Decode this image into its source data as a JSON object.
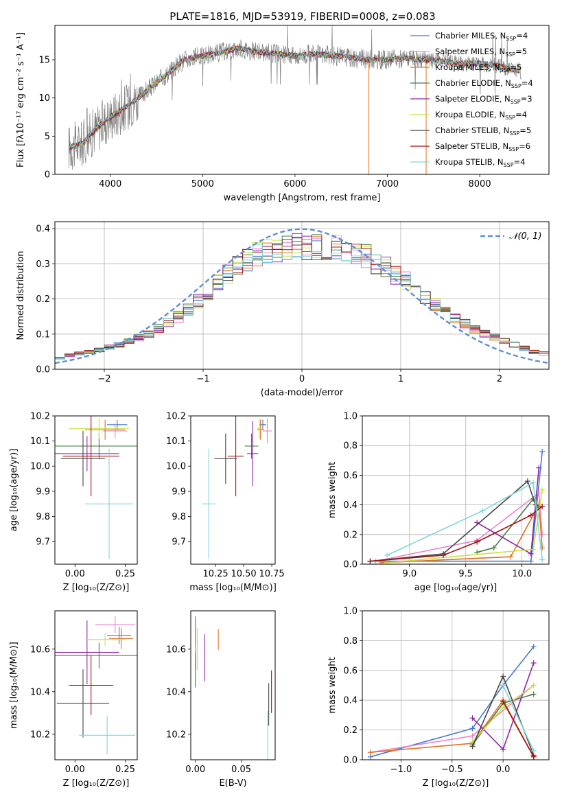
{
  "figure": {
    "title": "PLATE=1816, MJD=53919, FIBERID=0008, z=0.083"
  },
  "colors": {
    "data": "#808080",
    "gauss": "#5b8ddb",
    "series": [
      "#4878d0",
      "#ee82c8",
      "#e07020",
      "#4a7a45",
      "#8e24aa",
      "#c8e040",
      "#444444",
      "#a01010",
      "#7fd6dc"
    ]
  },
  "chart_data": [
    {
      "id": "spectrum",
      "type": "line",
      "xlabel": "wavelength [Angstrom, rest frame]",
      "ylabel": "Flux [fλ10⁻¹⁷ erg cm⁻² s⁻¹ A⁻¹]",
      "xlim": [
        3400,
        8750
      ],
      "ylim": [
        0,
        19.5
      ],
      "xticks": [
        4000,
        5000,
        6000,
        7000,
        8000
      ],
      "yticks": [
        0,
        5,
        10,
        15
      ],
      "legend_position": "right",
      "data_trend": {
        "x": [
          3550,
          3700,
          3850,
          4000,
          4200,
          4400,
          4600,
          4800,
          5000,
          5200,
          5400,
          5600,
          5800,
          6000,
          6200,
          6400,
          6600,
          6800,
          7000,
          7200,
          7400,
          7600,
          7800,
          8000,
          8200,
          8450
        ],
        "y": [
          3.5,
          4.0,
          6.0,
          7.5,
          9.0,
          11.0,
          13.0,
          15.0,
          15.5,
          16.0,
          16.5,
          16.0,
          15.8,
          15.5,
          15.8,
          15.5,
          15.3,
          15.0,
          15.0,
          15.2,
          15.0,
          14.8,
          14.5,
          14.5,
          14.2,
          13.5
        ]
      },
      "series": [
        {
          "name": "Chabrier MILES, N_SSP=4",
          "label_main": "Chabrier MILES, N",
          "label_sub": "SSP",
          "label_end": "=4"
        },
        {
          "name": "Salpeter MILES, N_SSP=5",
          "label_main": "Salpeter MILES, N",
          "label_sub": "SSP",
          "label_end": "=5"
        },
        {
          "name": "Kroupa MILES, N_SSP=5",
          "label_main": "Kroupa MILES, N",
          "label_sub": "SSP",
          "label_end": "=5"
        },
        {
          "name": "Chabrier ELODIE, N_SSP=4",
          "label_main": "Chabrier ELODIE, N",
          "label_sub": "SSP",
          "label_end": "=4"
        },
        {
          "name": "Salpeter ELODIE, N_SSP=3",
          "label_main": "Salpeter ELODIE, N",
          "label_sub": "SSP",
          "label_end": "=3"
        },
        {
          "name": "Kroupa ELODIE, N_SSP=4",
          "label_main": "Kroupa ELODIE, N",
          "label_sub": "SSP",
          "label_end": "=4"
        },
        {
          "name": "Chabrier STELIB, N_SSP=5",
          "label_main": "Chabrier STELIB, N",
          "label_sub": "SSP",
          "label_end": "=5"
        },
        {
          "name": "Salpeter STELIB, N_SSP=6",
          "label_main": "Salpeter STELIB, N",
          "label_sub": "SSP",
          "label_end": "=6"
        },
        {
          "name": "Kroupa STELIB, N_SSP=4",
          "label_main": "Kroupa STELIB, N",
          "label_sub": "SSP",
          "label_end": "=4"
        }
      ]
    },
    {
      "id": "residuals",
      "type": "line",
      "xlabel": "(data-model)/error",
      "ylabel": "Normed distribution",
      "xlim": [
        -2.5,
        2.5
      ],
      "ylim": [
        0,
        0.42
      ],
      "xticks": [
        -2,
        -1,
        0,
        1,
        2
      ],
      "xtick_labels": [
        "−2",
        "−1",
        "0",
        "1",
        "2"
      ],
      "yticks": [
        0.0,
        0.1,
        0.2,
        0.3,
        0.4
      ],
      "ytick_labels": [
        "0.0",
        "0.1",
        "0.2",
        "0.3",
        "0.4"
      ],
      "grid": true,
      "gauss_legend": "𝒩(0, 1)",
      "bins": [
        -2.5,
        -2.4,
        -2.3,
        -2.2,
        -2.1,
        -2.0,
        -1.9,
        -1.8,
        -1.7,
        -1.6,
        -1.5,
        -1.4,
        -1.3,
        -1.2,
        -1.1,
        -1.0,
        -0.9,
        -0.8,
        -0.7,
        -0.6,
        -0.5,
        -0.4,
        -0.3,
        -0.2,
        -0.1,
        0.0,
        0.1,
        0.2,
        0.3,
        0.4,
        0.5,
        0.6,
        0.7,
        0.8,
        0.9,
        1.0,
        1.1,
        1.2,
        1.3,
        1.4,
        1.5,
        1.6,
        1.7,
        1.8,
        1.9,
        2.0,
        2.1,
        2.2,
        2.3,
        2.4,
        2.5
      ],
      "hist_mean": [
        0.032,
        0.04,
        0.045,
        0.05,
        0.055,
        0.062,
        0.07,
        0.08,
        0.09,
        0.1,
        0.115,
        0.13,
        0.15,
        0.17,
        0.195,
        0.22,
        0.245,
        0.27,
        0.29,
        0.31,
        0.325,
        0.335,
        0.34,
        0.345,
        0.35,
        0.35,
        0.35,
        0.35,
        0.345,
        0.34,
        0.33,
        0.32,
        0.305,
        0.29,
        0.27,
        0.25,
        0.23,
        0.205,
        0.185,
        0.165,
        0.145,
        0.13,
        0.115,
        0.1,
        0.09,
        0.08,
        0.07,
        0.06,
        0.05,
        0.045
      ]
    },
    {
      "id": "age-vs-Z",
      "type": "scatter",
      "xlabel": "Z [log₁₀(Z/Z⊙)]",
      "ylabel": "age  [log₁₀(age/yr)]",
      "xlim": [
        -0.1,
        0.31
      ],
      "ylim": [
        9.61,
        10.2
      ],
      "xticks": [
        0.0,
        0.25
      ],
      "xtick_labels": [
        "0.00",
        "0.25"
      ],
      "yticks": [
        9.7,
        9.8,
        9.9,
        10.0,
        10.1,
        10.2
      ],
      "ytick_labels": [
        "9.7",
        "9.8",
        "9.9",
        "10.0",
        "10.1",
        "10.2"
      ],
      "points": [
        {
          "x": 0.21,
          "y": 10.165,
          "xerr": 0.05,
          "yerr": 0.02
        },
        {
          "x": 0.2,
          "y": 10.14,
          "xerr": 0.06,
          "yerr": 0.03
        },
        {
          "x": 0.15,
          "y": 10.145,
          "xerr": 0.1,
          "yerr": 0.04
        },
        {
          "x": 0.12,
          "y": 10.08,
          "xerr": 0.22,
          "yerr": 0.05
        },
        {
          "x": 0.06,
          "y": 10.05,
          "xerr": 0.16,
          "yerr": 0.07
        },
        {
          "x": 0.12,
          "y": 10.15,
          "xerr": 0.15,
          "yerr": 0.04
        },
        {
          "x": 0.04,
          "y": 10.03,
          "xerr": 0.11,
          "yerr": 0.11
        },
        {
          "x": 0.08,
          "y": 10.04,
          "xerr": 0.14,
          "yerr": 0.16
        },
        {
          "x": 0.17,
          "y": 9.85,
          "xerr": 0.12,
          "yerr": 0.22
        }
      ]
    },
    {
      "id": "age-vs-mass",
      "type": "scatter",
      "xlabel": "mass [log₁₀(M/M⊙)]",
      "ylabel": "",
      "xlim": [
        10.03,
        10.78
      ],
      "ylim": [
        9.61,
        10.2
      ],
      "xticks": [
        10.25,
        10.5,
        10.75
      ],
      "xtick_labels": [
        "10.25",
        "10.50",
        "10.75"
      ],
      "yticks": [
        9.7,
        9.8,
        9.9,
        10.0,
        10.1,
        10.2
      ],
      "ytick_labels": [
        "9.7",
        "9.8",
        "9.9",
        "10.0",
        "10.1",
        "10.2"
      ],
      "points": [
        {
          "x": 10.67,
          "y": 10.165,
          "xerr": 0.03,
          "yerr": 0.02
        },
        {
          "x": 10.71,
          "y": 10.14,
          "xerr": 0.04,
          "yerr": 0.05
        },
        {
          "x": 10.65,
          "y": 10.145,
          "xerr": 0.03,
          "yerr": 0.04
        },
        {
          "x": 10.57,
          "y": 10.08,
          "xerr": 0.06,
          "yerr": 0.05
        },
        {
          "x": 10.58,
          "y": 10.05,
          "xerr": 0.05,
          "yerr": 0.13
        },
        {
          "x": 10.64,
          "y": 10.15,
          "xerr": 0.02,
          "yerr": 0.04
        },
        {
          "x": 10.34,
          "y": 10.03,
          "xerr": 0.1,
          "yerr": 0.1
        },
        {
          "x": 10.43,
          "y": 10.04,
          "xerr": 0.07,
          "yerr": 0.16
        },
        {
          "x": 10.19,
          "y": 9.85,
          "xerr": 0.06,
          "yerr": 0.22
        }
      ]
    },
    {
      "id": "mass-weight-vs-age",
      "type": "line",
      "xlabel": "age  [log₁₀(age/yr)]",
      "ylabel": "mass weight",
      "xlim": [
        8.58,
        10.24
      ],
      "ylim": [
        0,
        1
      ],
      "xticks": [
        9.0,
        9.5,
        10.0
      ],
      "xtick_labels": [
        "9.0",
        "9.5",
        "10.0"
      ],
      "yticks": [
        0.0,
        0.2,
        0.4,
        0.6,
        0.8,
        1.0
      ],
      "ytick_labels": [
        "0.0",
        "0.2",
        "0.4",
        "0.6",
        "0.8",
        "1.0"
      ],
      "grid": true,
      "lines": [
        {
          "x": [
            8.65,
            10.08,
            10.18
          ],
          "y": [
            0.02,
            0.02,
            0.76
          ]
        },
        {
          "x": [
            8.7,
            9.6,
            10.15,
            10.18
          ],
          "y": [
            0.02,
            0.16,
            0.48,
            0.2
          ]
        },
        {
          "x": [
            8.75,
            9.9,
            10.15,
            10.18
          ],
          "y": [
            0.01,
            0.05,
            0.4,
            0.11
          ]
        },
        {
          "x": [
            9.6,
            9.75,
            10.1,
            10.15
          ],
          "y": [
            0.08,
            0.11,
            0.44,
            0.38
          ]
        },
        {
          "x": [
            9.6,
            10.08,
            10.15
          ],
          "y": [
            0.28,
            0.07,
            0.65
          ]
        },
        {
          "x": [
            8.8,
            10.1,
            10.18
          ],
          "y": [
            0.01,
            0.1,
            0.5
          ]
        },
        {
          "x": [
            8.65,
            9.3,
            10.05,
            10.12
          ],
          "y": [
            0.02,
            0.07,
            0.56,
            0.4
          ]
        },
        {
          "x": [
            8.65,
            9.3,
            9.6,
            10.08,
            10.18
          ],
          "y": [
            0.02,
            0.06,
            0.15,
            0.33,
            0.39
          ]
        },
        {
          "x": [
            8.8,
            9.65,
            10.1,
            10.18
          ],
          "y": [
            0.06,
            0.36,
            0.55,
            0.03
          ]
        }
      ]
    },
    {
      "id": "mass-vs-Z",
      "type": "scatter",
      "xlabel": "Z [log₁₀(Z/Z⊙)]",
      "ylabel": "mass [log₁₀(M/M⊙)]",
      "xlim": [
        -0.1,
        0.31
      ],
      "ylim": [
        10.08,
        10.78
      ],
      "xticks": [
        0.0,
        0.25
      ],
      "xtick_labels": [
        "0.00",
        "0.25"
      ],
      "yticks": [
        10.2,
        10.4,
        10.6
      ],
      "ytick_labels": [
        "10.2",
        "10.4",
        "10.6"
      ],
      "points": [
        {
          "x": 0.22,
          "y": 10.665,
          "xerr": 0.06,
          "yerr": 0.04
        },
        {
          "x": 0.2,
          "y": 10.715,
          "xerr": 0.1,
          "yerr": 0.04
        },
        {
          "x": 0.23,
          "y": 10.65,
          "xerr": 0.06,
          "yerr": 0.05
        },
        {
          "x": 0.12,
          "y": 10.57,
          "xerr": 0.22,
          "yerr": 0.06
        },
        {
          "x": 0.06,
          "y": 10.585,
          "xerr": 0.16,
          "yerr": 0.15
        },
        {
          "x": 0.15,
          "y": 10.645,
          "xerr": 0.1,
          "yerr": 0.03
        },
        {
          "x": 0.04,
          "y": 10.345,
          "xerr": 0.13,
          "yerr": 0.16
        },
        {
          "x": 0.08,
          "y": 10.43,
          "xerr": 0.11,
          "yerr": 0.14
        },
        {
          "x": 0.16,
          "y": 10.195,
          "xerr": 0.14,
          "yerr": 0.09
        }
      ]
    },
    {
      "id": "mass-vs-EBV",
      "type": "scatter",
      "xlabel": "E(B-V)",
      "ylabel": "",
      "xlim": [
        -0.005,
        0.087
      ],
      "ylim": [
        10.08,
        10.78
      ],
      "xticks": [
        0.0,
        0.05
      ],
      "xtick_labels": [
        "0.00",
        "0.05"
      ],
      "yticks": [
        10.2,
        10.4,
        10.6
      ],
      "ytick_labels": [
        "10.2",
        "10.4",
        "10.6"
      ],
      "points": [
        {
          "x": 0.0,
          "y": 10.665,
          "yerr": 0.09
        },
        {
          "x": 0.0,
          "y": 10.57,
          "yerr": 0.05
        },
        {
          "x": 0.025,
          "y": 10.645,
          "yerr": 0.05
        },
        {
          "x": 0.0,
          "y": 10.5,
          "yerr": 0.08
        },
        {
          "x": 0.01,
          "y": 10.56,
          "yerr": 0.11
        },
        {
          "x": 0.002,
          "y": 10.6,
          "yerr": 0.1
        },
        {
          "x": 0.08,
          "y": 10.34,
          "yerr": 0.1
        },
        {
          "x": 0.083,
          "y": 10.4,
          "yerr": 0.1
        },
        {
          "x": 0.079,
          "y": 10.18,
          "yerr": 0.13
        }
      ]
    },
    {
      "id": "mass-weight-vs-Z",
      "type": "line",
      "xlabel": "Z [log₁₀(Z/Z⊙)]",
      "ylabel": "mass weight",
      "xlim": [
        -1.38,
        0.45
      ],
      "ylim": [
        0,
        1
      ],
      "xticks": [
        -1.0,
        -0.5,
        0.0
      ],
      "xtick_labels": [
        "−1.0",
        "−0.5",
        "0.0"
      ],
      "yticks": [
        0.0,
        0.2,
        0.4,
        0.6,
        0.8,
        1.0
      ],
      "ytick_labels": [
        "0.0",
        "0.2",
        "0.4",
        "0.6",
        "0.8",
        "1.0"
      ],
      "grid": true,
      "lines": [
        {
          "x": [
            -1.3,
            -0.3,
            0.0,
            0.3
          ],
          "y": [
            0.02,
            0.21,
            0.5,
            0.76
          ]
        },
        {
          "x": [
            -1.3,
            -0.3,
            0.3
          ],
          "y": [
            0.05,
            0.16,
            0.5
          ]
        },
        {
          "x": [
            -1.3,
            -0.3,
            0.0,
            0.3
          ],
          "y": [
            0.05,
            0.11,
            0.4,
            0.02
          ]
        },
        {
          "x": [
            -0.3,
            0.0,
            0.3
          ],
          "y": [
            0.1,
            0.38,
            0.44
          ]
        },
        {
          "x": [
            -0.3,
            0.0,
            0.3
          ],
          "y": [
            0.28,
            0.07,
            0.65
          ]
        },
        {
          "x": [
            -0.3,
            0.0,
            0.3
          ],
          "y": [
            0.12,
            0.35,
            0.5
          ]
        },
        {
          "x": [
            -0.3,
            0.0,
            0.3
          ],
          "y": [
            0.09,
            0.56,
            0.03
          ]
        },
        {
          "x": [
            0.0,
            0.3
          ],
          "y": [
            0.39,
            0.02
          ]
        },
        {
          "x": [
            0.0,
            0.3
          ],
          "y": [
            0.5,
            0.06
          ]
        }
      ]
    }
  ]
}
